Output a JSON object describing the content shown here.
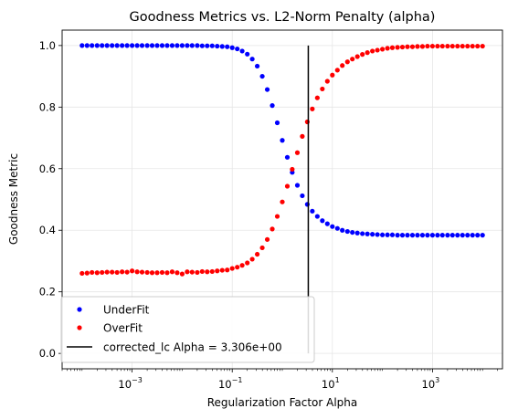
{
  "chart_data": {
    "type": "scatter",
    "title": "Goodness Metrics vs. L2-Norm Penalty (alpha)",
    "xlabel": "Regularization Factor Alpha",
    "ylabel": "Goodness Metric",
    "xscale": "log",
    "xlim": [
      4e-05,
      25000
    ],
    "ylim": [
      -0.05,
      1.05
    ],
    "yticks": [
      0.0,
      0.2,
      0.4,
      0.6,
      0.8,
      1.0
    ],
    "ytick_labels": [
      "0.0",
      "0.2",
      "0.4",
      "0.6",
      "0.8",
      "1.0"
    ],
    "xticks": [
      0.001,
      0.1,
      10,
      1000
    ],
    "xtick_labels": [
      {
        "base": "10",
        "exp": "−3"
      },
      {
        "base": "10",
        "exp": "−1"
      },
      {
        "base": "10",
        "exp": "1"
      },
      {
        "base": "10",
        "exp": "3"
      }
    ],
    "grid": true,
    "legend_position": "lower-left",
    "series": [
      {
        "name": "UnderFit",
        "color": "#0000ff",
        "marker": "dot",
        "x": [
          0.0001,
          0.000126,
          0.000158,
          0.0002,
          0.000251,
          0.000316,
          0.000398,
          0.000501,
          0.000631,
          0.000794,
          0.001,
          0.00126,
          0.00158,
          0.002,
          0.00251,
          0.00316,
          0.00398,
          0.00501,
          0.00631,
          0.00794,
          0.01,
          0.0126,
          0.0158,
          0.02,
          0.0251,
          0.0316,
          0.0398,
          0.0501,
          0.0631,
          0.0794,
          0.1,
          0.126,
          0.158,
          0.2,
          0.251,
          0.316,
          0.398,
          0.501,
          0.631,
          0.794,
          1.0,
          1.26,
          1.58,
          2.0,
          2.51,
          3.16,
          3.98,
          5.01,
          6.31,
          7.94,
          10.0,
          12.6,
          15.8,
          20.0,
          25.1,
          31.6,
          39.8,
          50.1,
          63.1,
          79.4,
          100,
          126,
          158,
          200,
          251,
          316,
          398,
          501,
          631,
          794,
          1000,
          1260,
          1580,
          2000,
          2510,
          3160,
          3980,
          5010,
          6310,
          7940,
          10000
        ],
        "y": [
          1.0,
          1.0,
          1.0,
          1.0,
          1.0,
          1.0,
          1.0,
          1.0,
          1.0,
          1.0,
          1.0,
          1.0,
          1.0,
          1.0,
          1.0,
          1.0,
          1.0,
          1.0,
          1.0,
          1.0,
          1.0,
          1.0,
          1.0,
          1.0,
          0.999,
          0.999,
          0.999,
          0.998,
          0.997,
          0.996,
          0.993,
          0.989,
          0.982,
          0.972,
          0.956,
          0.933,
          0.9,
          0.857,
          0.805,
          0.749,
          0.692,
          0.637,
          0.588,
          0.546,
          0.512,
          0.484,
          0.462,
          0.445,
          0.431,
          0.421,
          0.412,
          0.406,
          0.4,
          0.396,
          0.393,
          0.391,
          0.389,
          0.388,
          0.387,
          0.386,
          0.385,
          0.385,
          0.385,
          0.384,
          0.384,
          0.384,
          0.384,
          0.384,
          0.384,
          0.384,
          0.384,
          0.384,
          0.384,
          0.384,
          0.384,
          0.384,
          0.384,
          0.384,
          0.384,
          0.384,
          0.384
        ]
      },
      {
        "name": "OverFit",
        "color": "#ff0000",
        "marker": "dot",
        "x": [
          0.0001,
          0.000126,
          0.000158,
          0.0002,
          0.000251,
          0.000316,
          0.000398,
          0.000501,
          0.000631,
          0.000794,
          0.001,
          0.00126,
          0.00158,
          0.002,
          0.00251,
          0.00316,
          0.00398,
          0.00501,
          0.00631,
          0.00794,
          0.01,
          0.0126,
          0.0158,
          0.02,
          0.0251,
          0.0316,
          0.0398,
          0.0501,
          0.0631,
          0.0794,
          0.1,
          0.126,
          0.158,
          0.2,
          0.251,
          0.316,
          0.398,
          0.501,
          0.631,
          0.794,
          1.0,
          1.26,
          1.58,
          2.0,
          2.51,
          3.16,
          3.98,
          5.01,
          6.31,
          7.94,
          10.0,
          12.6,
          15.8,
          20.0,
          25.1,
          31.6,
          39.8,
          50.1,
          63.1,
          79.4,
          100,
          126,
          158,
          200,
          251,
          316,
          398,
          501,
          631,
          794,
          1000,
          1260,
          1580,
          2000,
          2510,
          3160,
          3980,
          5010,
          6310,
          7940,
          10000
        ],
        "y": [
          0.26,
          0.261,
          0.263,
          0.262,
          0.263,
          0.264,
          0.264,
          0.263,
          0.265,
          0.264,
          0.268,
          0.265,
          0.264,
          0.263,
          0.262,
          0.262,
          0.263,
          0.262,
          0.265,
          0.262,
          0.258,
          0.265,
          0.264,
          0.263,
          0.266,
          0.265,
          0.266,
          0.268,
          0.27,
          0.271,
          0.276,
          0.28,
          0.286,
          0.294,
          0.306,
          0.322,
          0.343,
          0.37,
          0.404,
          0.445,
          0.492,
          0.543,
          0.598,
          0.652,
          0.705,
          0.752,
          0.794,
          0.83,
          0.859,
          0.884,
          0.904,
          0.92,
          0.935,
          0.947,
          0.956,
          0.964,
          0.971,
          0.977,
          0.982,
          0.985,
          0.988,
          0.991,
          0.993,
          0.994,
          0.995,
          0.996,
          0.996,
          0.997,
          0.997,
          0.998,
          0.998,
          0.998,
          0.998,
          0.998,
          0.998,
          0.998,
          0.998,
          0.998,
          0.998,
          0.998,
          0.998
        ]
      }
    ],
    "vertical_line": {
      "name": "corrected_lc Alpha = 3.306e+00",
      "x": 3.306,
      "y_range": [
        0.0,
        1.0
      ],
      "color": "#000000"
    }
  }
}
